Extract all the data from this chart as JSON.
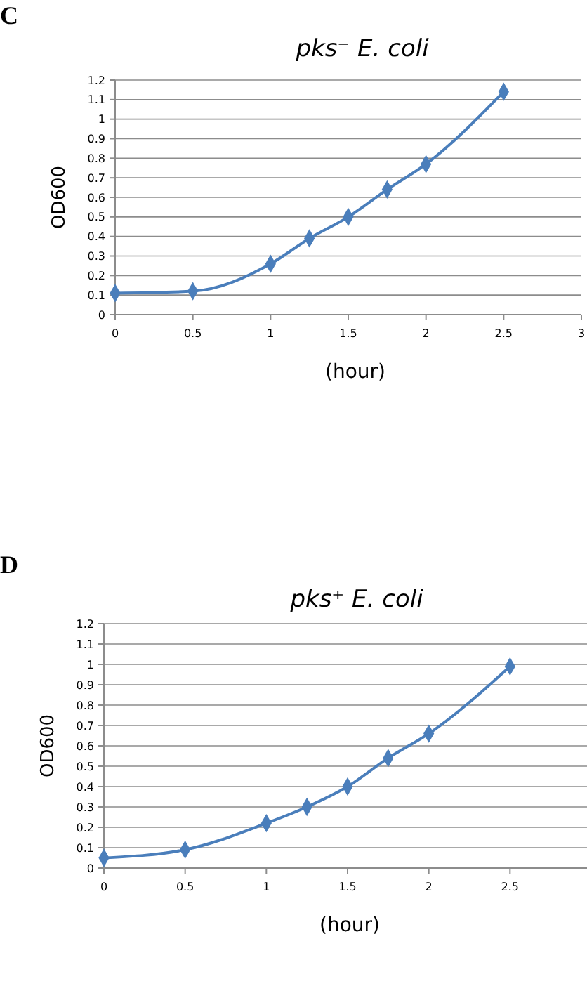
{
  "chart_data": [
    {
      "type": "line",
      "title": "pks⁻ E. coli",
      "xlabel": "(hour)",
      "ylabel": "OD600",
      "annotations": [
        "C"
      ],
      "x": [
        0,
        0.5,
        1,
        1.25,
        1.5,
        1.75,
        2,
        2.5
      ],
      "series": [
        {
          "color": "#4a7ebb",
          "values": [
            0.11,
            0.12,
            0.26,
            0.39,
            0.5,
            0.64,
            0.77,
            1.14
          ]
        }
      ],
      "xlim": [
        0,
        3
      ],
      "xticks": [
        0,
        0.5,
        1,
        1.5,
        2,
        2.5,
        3
      ],
      "ylim": [
        0,
        1.2
      ],
      "yticks": [
        0,
        0.1,
        0.2,
        0.3,
        0.4,
        0.5,
        0.6,
        0.7,
        0.8,
        0.9,
        1,
        1.1,
        1.2
      ],
      "grid": "y",
      "marker": "diamond",
      "line_style": "solid"
    },
    {
      "type": "line",
      "title": "pks⁺ E. coli",
      "xlabel": "(hour)",
      "ylabel": "OD600",
      "annotations": [
        "D"
      ],
      "x": [
        0,
        0.5,
        1,
        1.25,
        1.5,
        1.75,
        2,
        2.5
      ],
      "series": [
        {
          "color": "#4a7ebb",
          "values": [
            0.05,
            0.09,
            0.22,
            0.3,
            0.4,
            0.54,
            0.66,
            0.99
          ]
        }
      ],
      "xlim": [
        0,
        3
      ],
      "xticks": [
        0,
        0.5,
        1,
        1.5,
        2,
        2.5
      ],
      "ylim": [
        0,
        1.2
      ],
      "yticks": [
        0,
        0.1,
        0.2,
        0.3,
        0.4,
        0.5,
        0.6,
        0.7,
        0.8,
        0.9,
        1,
        1.1,
        1.2
      ],
      "grid": "y",
      "marker": "diamond",
      "line_style": "solid"
    }
  ]
}
